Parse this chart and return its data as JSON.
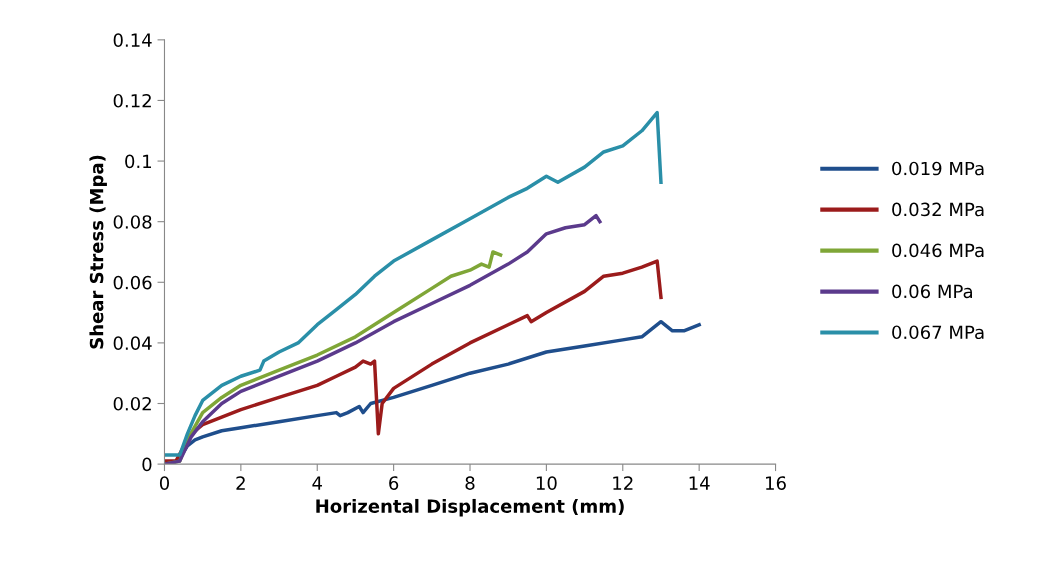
{
  "chart_data": {
    "type": "line",
    "xlabel": "Horizental Displacement (mm)",
    "ylabel": "Shear Stress (Mpa)",
    "xlim": [
      0,
      16
    ],
    "xticks": [
      0,
      2,
      4,
      6,
      8,
      10,
      12,
      14,
      16
    ],
    "ylim": [
      0,
      0.14
    ],
    "yticks": [
      0,
      0.02,
      0.04,
      0.06,
      0.08,
      0.1,
      0.12,
      0.14
    ],
    "grid": false,
    "legend": "right",
    "marker": "none",
    "line_style": "solid",
    "series": [
      {
        "name": "0.019 MPa",
        "color": "#1f4e8c",
        "x": [
          0.2,
          0.4,
          0.6,
          0.8,
          1,
          1.5,
          2,
          3,
          4,
          4.5,
          4.6,
          4.8,
          5.1,
          5.2,
          5.4,
          6,
          7,
          8,
          9,
          10,
          11,
          12,
          12.5,
          13,
          13.3,
          13.6,
          14
        ],
        "values": [
          0,
          0.002,
          0.006,
          0.008,
          0.009,
          0.011,
          0.012,
          0.014,
          0.016,
          0.017,
          0.016,
          0.017,
          0.019,
          0.017,
          0.02,
          0.022,
          0.026,
          0.03,
          0.033,
          0.037,
          0.039,
          0.041,
          0.042,
          0.047,
          0.044,
          0.044,
          0.046
        ]
      },
      {
        "name": "0.032 MPa",
        "color": "#9b1b1b",
        "x": [
          0,
          0.3,
          0.6,
          0.8,
          1,
          2,
          3,
          4,
          4.5,
          5,
          5.2,
          5.4,
          5.5,
          5.6,
          5.7,
          6,
          7,
          8,
          9,
          9.5,
          9.6,
          10,
          11,
          11.5,
          12,
          12.5,
          12.9,
          13
        ],
        "values": [
          0.001,
          0.001,
          0.008,
          0.011,
          0.013,
          0.018,
          0.022,
          0.026,
          0.029,
          0.032,
          0.034,
          0.033,
          0.034,
          0.01,
          0.02,
          0.025,
          0.033,
          0.04,
          0.046,
          0.049,
          0.047,
          0.05,
          0.057,
          0.062,
          0.063,
          0.065,
          0.067,
          0.055
        ]
      },
      {
        "name": "0.046 MPa",
        "color": "#7fa637",
        "x": [
          0,
          0.4,
          0.6,
          1,
          1.5,
          2,
          3,
          4,
          5,
          6,
          7,
          7.5,
          8,
          8.3,
          8.5,
          8.6,
          8.8
        ],
        "values": [
          0,
          0.001,
          0.008,
          0.017,
          0.022,
          0.026,
          0.031,
          0.036,
          0.042,
          0.05,
          0.058,
          0.062,
          0.064,
          0.066,
          0.065,
          0.07,
          0.069
        ]
      },
      {
        "name": "0.06 MPa",
        "color": "#5b3a8c",
        "x": [
          0,
          0.4,
          0.7,
          1,
          1.5,
          2,
          3,
          4,
          5,
          6,
          7,
          8,
          9,
          9.5,
          10,
          10.5,
          11,
          11.3,
          11.4
        ],
        "values": [
          0,
          0.001,
          0.009,
          0.014,
          0.02,
          0.024,
          0.029,
          0.034,
          0.04,
          0.047,
          0.053,
          0.059,
          0.066,
          0.07,
          0.076,
          0.078,
          0.079,
          0.082,
          0.08
        ]
      },
      {
        "name": "0.067 MPa",
        "color": "#2a8fa8",
        "x": [
          0,
          0.4,
          0.6,
          0.8,
          1,
          1.5,
          2,
          2.5,
          2.6,
          3,
          3.5,
          4,
          4.5,
          5,
          5.5,
          6,
          7,
          8,
          9,
          9.5,
          10,
          10.3,
          11,
          11.5,
          12,
          12.5,
          12.9,
          13
        ],
        "values": [
          0.003,
          0.003,
          0.01,
          0.016,
          0.021,
          0.026,
          0.029,
          0.031,
          0.034,
          0.037,
          0.04,
          0.046,
          0.051,
          0.056,
          0.062,
          0.067,
          0.074,
          0.081,
          0.088,
          0.091,
          0.095,
          0.093,
          0.098,
          0.103,
          0.105,
          0.11,
          0.116,
          0.093
        ]
      }
    ]
  }
}
